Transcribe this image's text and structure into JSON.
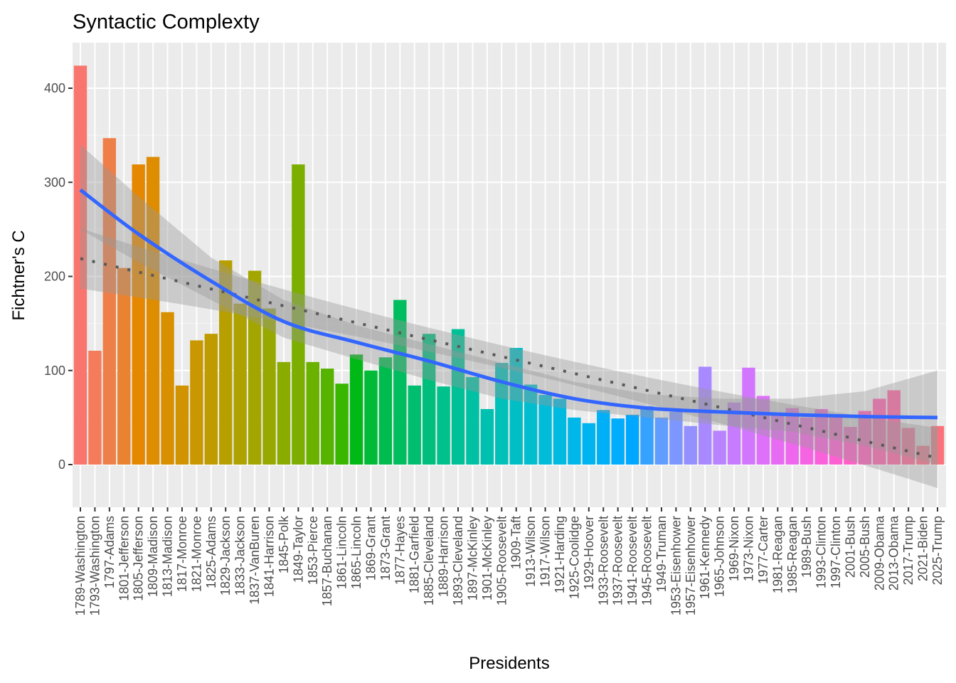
{
  "chart_data": {
    "type": "bar",
    "title": "Syntactic Complexty",
    "xlabel": "Presidents",
    "ylabel": "Fichtner's C",
    "ylim": [
      -45,
      445
    ],
    "yticks": [
      0,
      100,
      200,
      300,
      400
    ],
    "yticklabels": [
      "0",
      "100",
      "200",
      "300",
      "400"
    ],
    "grid": true,
    "legend": "none",
    "categories": [
      "1789-Washington",
      "1793-Washington",
      "1797-Adams",
      "1801-Jefferson",
      "1805-Jefferson",
      "1809-Madison",
      "1813-Madison",
      "1817-Monroe",
      "1821-Monroe",
      "1825-Adams",
      "1829-Jackson",
      "1833-Jackson",
      "1837-VanBuren",
      "1841-Harrison",
      "1845-Polk",
      "1849-Taylor",
      "1853-Pierce",
      "1857-Buchanan",
      "1861-Lincoln",
      "1865-Lincoln",
      "1869-Grant",
      "1873-Grant",
      "1877-Hayes",
      "1881-Garfield",
      "1885-Cleveland",
      "1889-Harrison",
      "1893-Cleveland",
      "1897-McKinley",
      "1901-McKinley",
      "1905-Roosevelt",
      "1909-Taft",
      "1913-Wilson",
      "1917-Wilson",
      "1921-Harding",
      "1925-Coolidge",
      "1929-Hoover",
      "1933-Roosevelt",
      "1937-Roosevelt",
      "1941-Roosevelt",
      "1945-Roosevelt",
      "1949-Truman",
      "1953-Eisenhower",
      "1957-Eisenhower",
      "1961-Kennedy",
      "1965-Johnson",
      "1969-Nixon",
      "1973-Nixon",
      "1977-Carter",
      "1981-Reagan",
      "1985-Reagan",
      "1989-Bush",
      "1993-Clinton",
      "1997-Clinton",
      "2001-Bush",
      "2005-Bush",
      "2009-Obama",
      "2013-Obama",
      "2017-Trump",
      "2021-Biden",
      "2025-Trump"
    ],
    "values": [
      424,
      121,
      347,
      209,
      319,
      327,
      162,
      84,
      132,
      139,
      217,
      171,
      206,
      166,
      109,
      319,
      109,
      102,
      86,
      117,
      100,
      114,
      175,
      84,
      139,
      83,
      144,
      93,
      59,
      108,
      124,
      85,
      74,
      70,
      50,
      44,
      58,
      49,
      53,
      62,
      50,
      56,
      41,
      104,
      36,
      66,
      103,
      73,
      53,
      60,
      50,
      59,
      51,
      40,
      57,
      70,
      79,
      39,
      20,
      41
    ],
    "smooth_loess": {
      "name": "loess",
      "color": "#3366ff",
      "x_index": [
        1,
        5,
        10,
        15,
        20,
        25,
        30,
        35,
        40,
        45,
        50,
        55,
        60
      ],
      "y": [
        292,
        245,
        195,
        152,
        130,
        110,
        88,
        70,
        60,
        56,
        53,
        51,
        50
      ],
      "ci_lower": [
        250,
        215,
        175,
        135,
        112,
        90,
        70,
        58,
        50,
        42,
        35,
        20,
        0
      ],
      "ci_upper": [
        340,
        285,
        220,
        175,
        148,
        128,
        108,
        88,
        75,
        70,
        70,
        78,
        100
      ]
    },
    "smooth_linear": {
      "name": "linear",
      "color": "#595959",
      "style": "dotted",
      "x_index": [
        1,
        60
      ],
      "y": [
        219,
        7
      ],
      "ci_lower": [
        189,
        -24
      ],
      "ci_upper": [
        249,
        39
      ]
    }
  }
}
